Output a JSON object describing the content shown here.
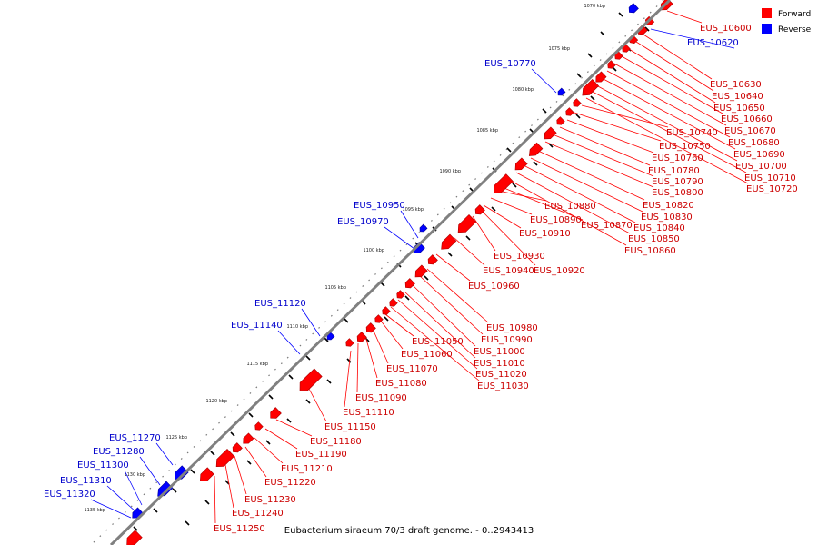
{
  "caption": "Eubacterium siraeum 70/3 draft genome. - 0..2943413",
  "legend": [
    {
      "label": "Forward",
      "color": "#ff0000"
    },
    {
      "label": "Reverse",
      "color": "#0000ff"
    }
  ],
  "colors": {
    "forward": "#ff0000",
    "forward_edge": "#aa0000",
    "reverse": "#0000ff",
    "reverse_edge": "#000099",
    "backbone": "#808080",
    "forward_label": "#cc0000",
    "reverse_label": "#0000cc"
  },
  "scale_labels": [
    "1070 kbp",
    "1075 kbp",
    "1080 kbp",
    "1085 kbp",
    "1090 kbp",
    "1095 kbp",
    "1100 kbp",
    "1105 kbp",
    "1110 kbp",
    "1115 kbp",
    "1120 kbp",
    "1125 kbp",
    "1130 kbp",
    "1135 kbp"
  ],
  "features": [
    {
      "name": "EUS_10600",
      "strand": "forward"
    },
    {
      "name": "EUS_10620",
      "strand": "reverse"
    },
    {
      "name": "EUS_10630",
      "strand": "forward"
    },
    {
      "name": "EUS_10640",
      "strand": "forward"
    },
    {
      "name": "EUS_10650",
      "strand": "forward"
    },
    {
      "name": "EUS_10660",
      "strand": "forward"
    },
    {
      "name": "EUS_10670",
      "strand": "forward"
    },
    {
      "name": "EUS_10680",
      "strand": "forward"
    },
    {
      "name": "EUS_10690",
      "strand": "forward"
    },
    {
      "name": "EUS_10700",
      "strand": "forward"
    },
    {
      "name": "EUS_10710",
      "strand": "forward"
    },
    {
      "name": "EUS_10720",
      "strand": "forward"
    },
    {
      "name": "EUS_10740",
      "strand": "forward"
    },
    {
      "name": "EUS_10750",
      "strand": "forward"
    },
    {
      "name": "EUS_10760",
      "strand": "forward"
    },
    {
      "name": "EUS_10770",
      "strand": "reverse"
    },
    {
      "name": "EUS_10780",
      "strand": "forward"
    },
    {
      "name": "EUS_10790",
      "strand": "forward"
    },
    {
      "name": "EUS_10800",
      "strand": "forward"
    },
    {
      "name": "EUS_10820",
      "strand": "forward"
    },
    {
      "name": "EUS_10830",
      "strand": "forward"
    },
    {
      "name": "EUS_10840",
      "strand": "forward"
    },
    {
      "name": "EUS_10850",
      "strand": "forward"
    },
    {
      "name": "EUS_10860",
      "strand": "forward"
    },
    {
      "name": "EUS_10870",
      "strand": "forward"
    },
    {
      "name": "EUS_10880",
      "strand": "forward"
    },
    {
      "name": "EUS_10890",
      "strand": "forward"
    },
    {
      "name": "EUS_10910",
      "strand": "forward"
    },
    {
      "name": "EUS_10920",
      "strand": "forward"
    },
    {
      "name": "EUS_10930",
      "strand": "forward"
    },
    {
      "name": "EUS_10940",
      "strand": "forward"
    },
    {
      "name": "EUS_10950",
      "strand": "reverse"
    },
    {
      "name": "EUS_10960",
      "strand": "forward"
    },
    {
      "name": "EUS_10970",
      "strand": "reverse"
    },
    {
      "name": "EUS_10980",
      "strand": "forward"
    },
    {
      "name": "EUS_10990",
      "strand": "forward"
    },
    {
      "name": "EUS_11000",
      "strand": "forward"
    },
    {
      "name": "EUS_11010",
      "strand": "forward"
    },
    {
      "name": "EUS_11020",
      "strand": "forward"
    },
    {
      "name": "EUS_11030",
      "strand": "forward"
    },
    {
      "name": "EUS_11050",
      "strand": "forward"
    },
    {
      "name": "EUS_11060",
      "strand": "forward"
    },
    {
      "name": "EUS_11070",
      "strand": "forward"
    },
    {
      "name": "EUS_11080",
      "strand": "forward"
    },
    {
      "name": "EUS_11090",
      "strand": "forward"
    },
    {
      "name": "EUS_11110",
      "strand": "forward"
    },
    {
      "name": "EUS_11120",
      "strand": "reverse"
    },
    {
      "name": "EUS_11140",
      "strand": "reverse"
    },
    {
      "name": "EUS_11150",
      "strand": "forward"
    },
    {
      "name": "EUS_11180",
      "strand": "forward"
    },
    {
      "name": "EUS_11190",
      "strand": "forward"
    },
    {
      "name": "EUS_11210",
      "strand": "forward"
    },
    {
      "name": "EUS_11220",
      "strand": "forward"
    },
    {
      "name": "EUS_11230",
      "strand": "forward"
    },
    {
      "name": "EUS_11240",
      "strand": "forward"
    },
    {
      "name": "EUS_11250",
      "strand": "forward"
    },
    {
      "name": "EUS_11270",
      "strand": "reverse"
    },
    {
      "name": "EUS_11280",
      "strand": "reverse"
    },
    {
      "name": "EUS_11300",
      "strand": "reverse"
    },
    {
      "name": "EUS_11310",
      "strand": "reverse"
    },
    {
      "name": "EUS_11320",
      "strand": "reverse"
    }
  ]
}
